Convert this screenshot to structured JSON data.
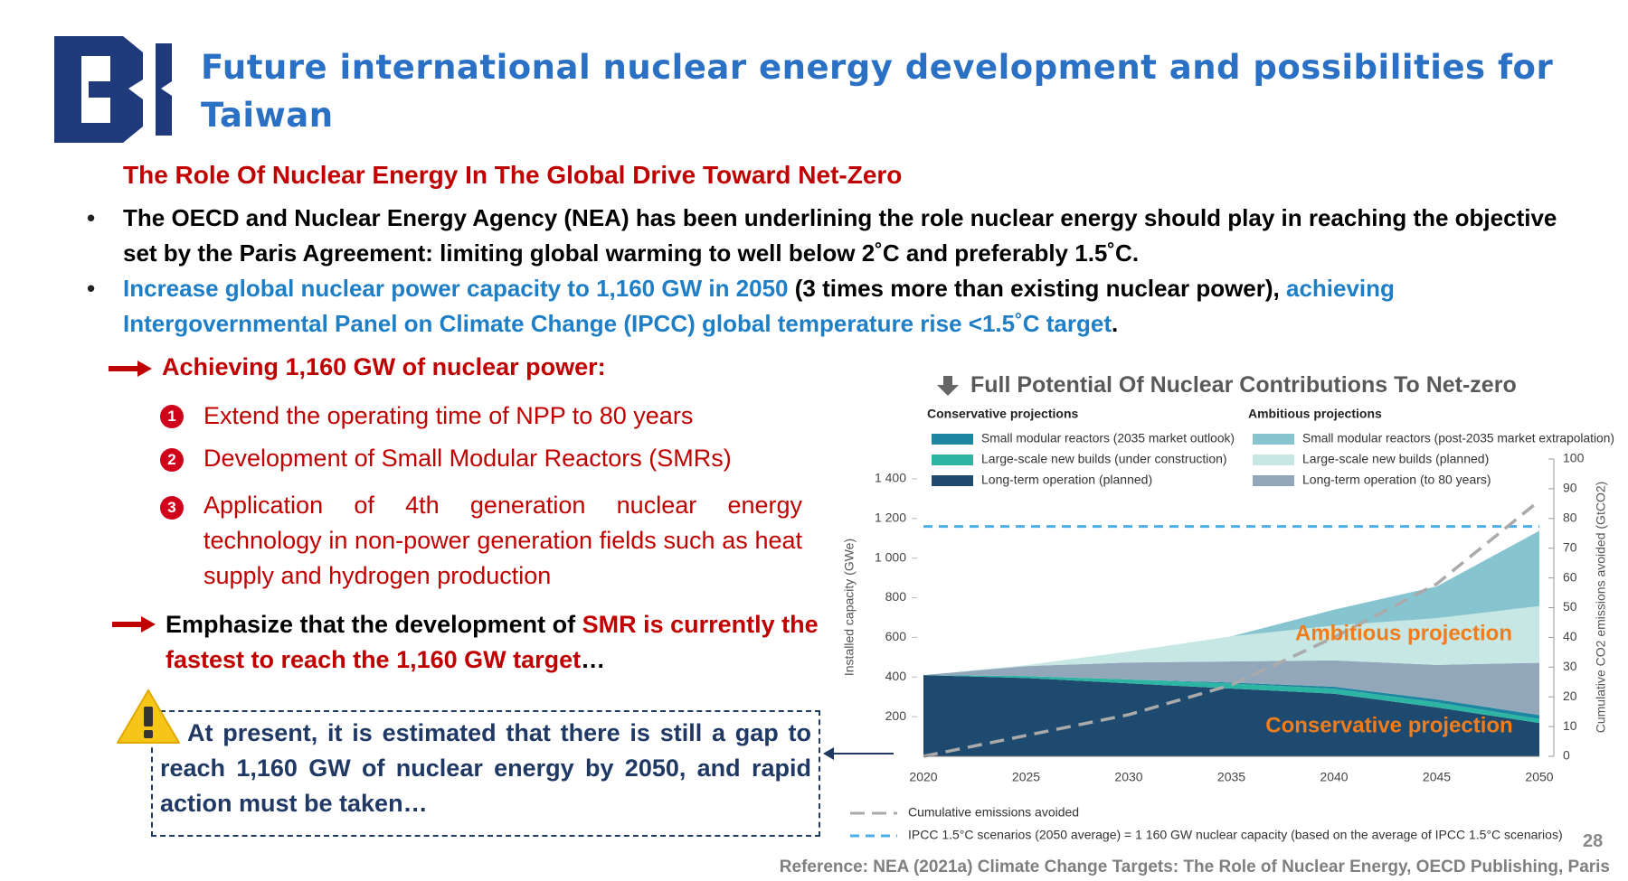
{
  "header": {
    "title": "Future international nuclear energy development and possibilities for Taiwan"
  },
  "section_title": "The Role Of Nuclear Energy In The Global Drive Toward Net-Zero",
  "bullets": [
    {
      "text": "The OECD and Nuclear Energy Agency (NEA) has been underlining the role nuclear energy should play in reaching the objective set by the Paris Agreement: limiting global warming to well below 2˚C and preferably 1.5˚C."
    },
    {
      "segments": [
        "Increase global nuclear power capacity to 1,160 GW in 2050",
        " (3 times more than existing nuclear power), ",
        "achieving Intergovernmental Panel on Climate Change (IPCC) global temperature rise <1.5˚C target",
        "."
      ]
    }
  ],
  "achieving": {
    "heading": "Achieving 1,160 GW of nuclear power:",
    "items": [
      {
        "number": "1",
        "text": "Extend the operating time of NPP to 80 years"
      },
      {
        "number": "2",
        "text": "Development of Small Modular Reactors (SMRs)"
      },
      {
        "number": "3",
        "text": "Application of 4th generation nuclear energy technology in non-power generation fields such as heat supply and hydrogen production"
      }
    ]
  },
  "emphasis": [
    "Emphasize that the development of ",
    "SMR is currently the fastest to reach the 1,160 GW target",
    "…"
  ],
  "warning": "At present, it is estimated that there is still a gap to reach 1,160 GW of nuclear energy by 2050, and rapid action must be taken…",
  "chart_data": {
    "type": "stacked-area",
    "title": "Full Potential Of Nuclear Contributions To Net-zero",
    "legend_groups": [
      "Conservative projections",
      "Ambitious projections"
    ],
    "x": [
      2020,
      2025,
      2030,
      2035,
      2040,
      2045,
      2050
    ],
    "xlim": [
      2020,
      2050
    ],
    "ylim": [
      0,
      1500
    ],
    "yticks": [
      200,
      400,
      600,
      800,
      {
        "value": 1000,
        "label": "1 000"
      },
      {
        "value": 1200,
        "label": "1 200"
      },
      {
        "value": 1400,
        "label": "1 400"
      }
    ],
    "y2lim": [
      0,
      100
    ],
    "y2ticks": [
      0,
      10,
      20,
      30,
      40,
      50,
      60,
      70,
      80,
      90,
      100
    ],
    "ylabel": "Installed capacity (GWe)",
    "y2label": "Cumulative CO2 emissions avoided (GtCO2)",
    "series": [
      {
        "name": "Small modular reactors (2035 market outlook)",
        "color": "#1d86a0",
        "values": [
          0,
          0,
          0,
          5,
          10,
          15,
          20
        ]
      },
      {
        "name": "Large-scale new builds (under construction)",
        "color": "#2cb5a3",
        "values": [
          0,
          10,
          20,
          25,
          25,
          25,
          20
        ]
      },
      {
        "name": "Long-term operation (planned)",
        "color": "#1d4a6e",
        "values": [
          410,
          395,
          368,
          342,
          316,
          247,
          168
        ]
      },
      {
        "name": "Small modular reactors (post-2035 market extrapolation)",
        "color": "#86c4d0",
        "values": [
          0,
          0,
          0,
          0,
          80,
          160,
          380
        ]
      },
      {
        "name": "Large-scale new builds (planned)",
        "color": "#c6e7e4",
        "values": [
          0,
          5,
          56,
          126,
          176,
          236,
          286
        ]
      },
      {
        "name": "Long-term operation (to 80 years)",
        "color": "#92a7ba",
        "values": [
          0,
          50,
          85,
          107,
          133,
          174,
          264
        ]
      },
      {
        "name": "Cumulative emissions avoided",
        "color": "#aaaaaa",
        "axis": "y2",
        "dashed": true,
        "values": [
          0,
          7,
          14,
          24,
          40,
          58,
          86
        ]
      }
    ],
    "reference_lines": [
      {
        "name": "IPCC 1.5°C scenarios (2050 average) = 1 160 GW nuclear capacity (based on the average of IPCC 1.5°C scenarios)",
        "value": 1160,
        "color": "#4cb0e8",
        "dashed": true
      }
    ],
    "annotations": [
      "Ambitious projection",
      "Conservative projection"
    ]
  },
  "page_number": "28",
  "reference": "Reference: NEA (2021a) Climate Change Targets: The Role of Nuclear Energy, OECD Publishing, Paris"
}
